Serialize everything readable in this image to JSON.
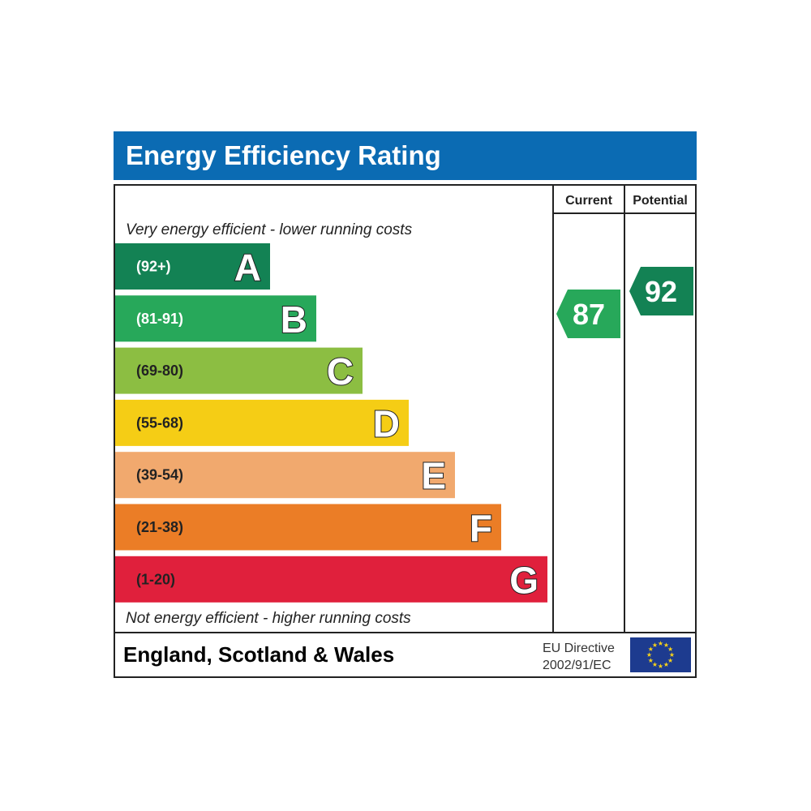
{
  "chart_data": {
    "type": "bar",
    "title": "Energy Efficiency Rating",
    "columns": [
      "Current",
      "Potential"
    ],
    "top_caption": "Very energy efficient - lower running costs",
    "bottom_caption": "Not energy efficient - higher running costs",
    "bands": [
      {
        "letter": "A",
        "range": "(92+)",
        "color": "#138254",
        "label_color": "#ffffff"
      },
      {
        "letter": "B",
        "range": "(81-91)",
        "color": "#27a85a",
        "label_color": "#ffffff"
      },
      {
        "letter": "C",
        "range": "(69-80)",
        "color": "#8cbe42",
        "label_color": "#222222"
      },
      {
        "letter": "D",
        "range": "(55-68)",
        "color": "#f5cd15",
        "label_color": "#222222"
      },
      {
        "letter": "E",
        "range": "(39-54)",
        "color": "#f1a96e",
        "label_color": "#222222"
      },
      {
        "letter": "F",
        "range": "(21-38)",
        "color": "#eb7d26",
        "label_color": "#222222"
      },
      {
        "letter": "G",
        "range": "(1-20)",
        "color": "#e0203c",
        "label_color": "#222222"
      }
    ],
    "current": {
      "value": 87,
      "color": "#27a85a"
    },
    "potential": {
      "value": 92,
      "color": "#138254"
    }
  },
  "footer": {
    "region": "England, Scotland & Wales",
    "directive_line1": "EU Directive",
    "directive_line2": "2002/91/EC"
  },
  "colors": {
    "header": "#0b6bb3",
    "eu_flag": "#1d3b8f",
    "eu_stars": "#f7d21a"
  }
}
